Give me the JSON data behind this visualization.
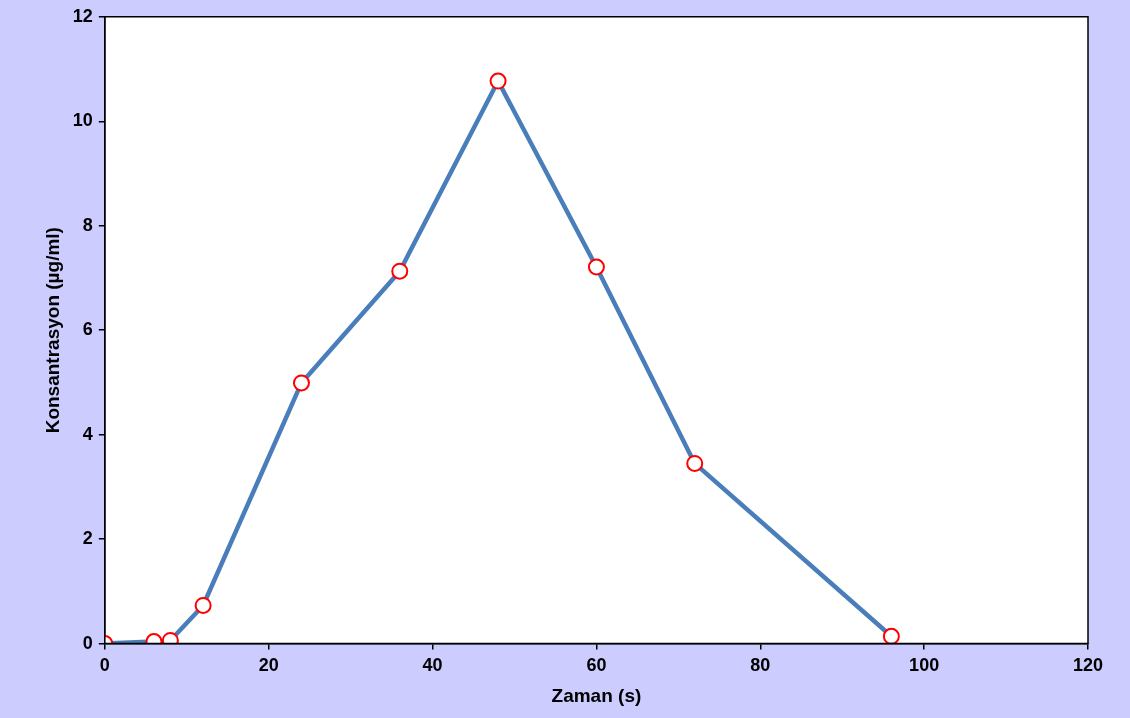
{
  "chart_data": {
    "type": "line",
    "xlabel": "Zaman (s)",
    "ylabel": "Konsantrasyon (µg/ml)",
    "x": [
      0,
      6,
      8,
      12,
      24,
      36,
      48,
      60,
      72,
      96
    ],
    "series": [
      {
        "color": "#4a7ebb",
        "values": [
          0,
          0.04,
          0.06,
          0.73,
          4.99,
          7.13,
          10.77,
          7.21,
          3.45,
          0.14
        ]
      }
    ],
    "xlim": [
      0,
      120
    ],
    "xticks": [
      0,
      20,
      40,
      60,
      80,
      100,
      120
    ],
    "ylim": [
      0,
      12
    ],
    "yticks": [
      0,
      2,
      4,
      6,
      8,
      10,
      12
    ],
    "grid": false,
    "legend": false,
    "marker": "circle",
    "line_style": "solid"
  }
}
